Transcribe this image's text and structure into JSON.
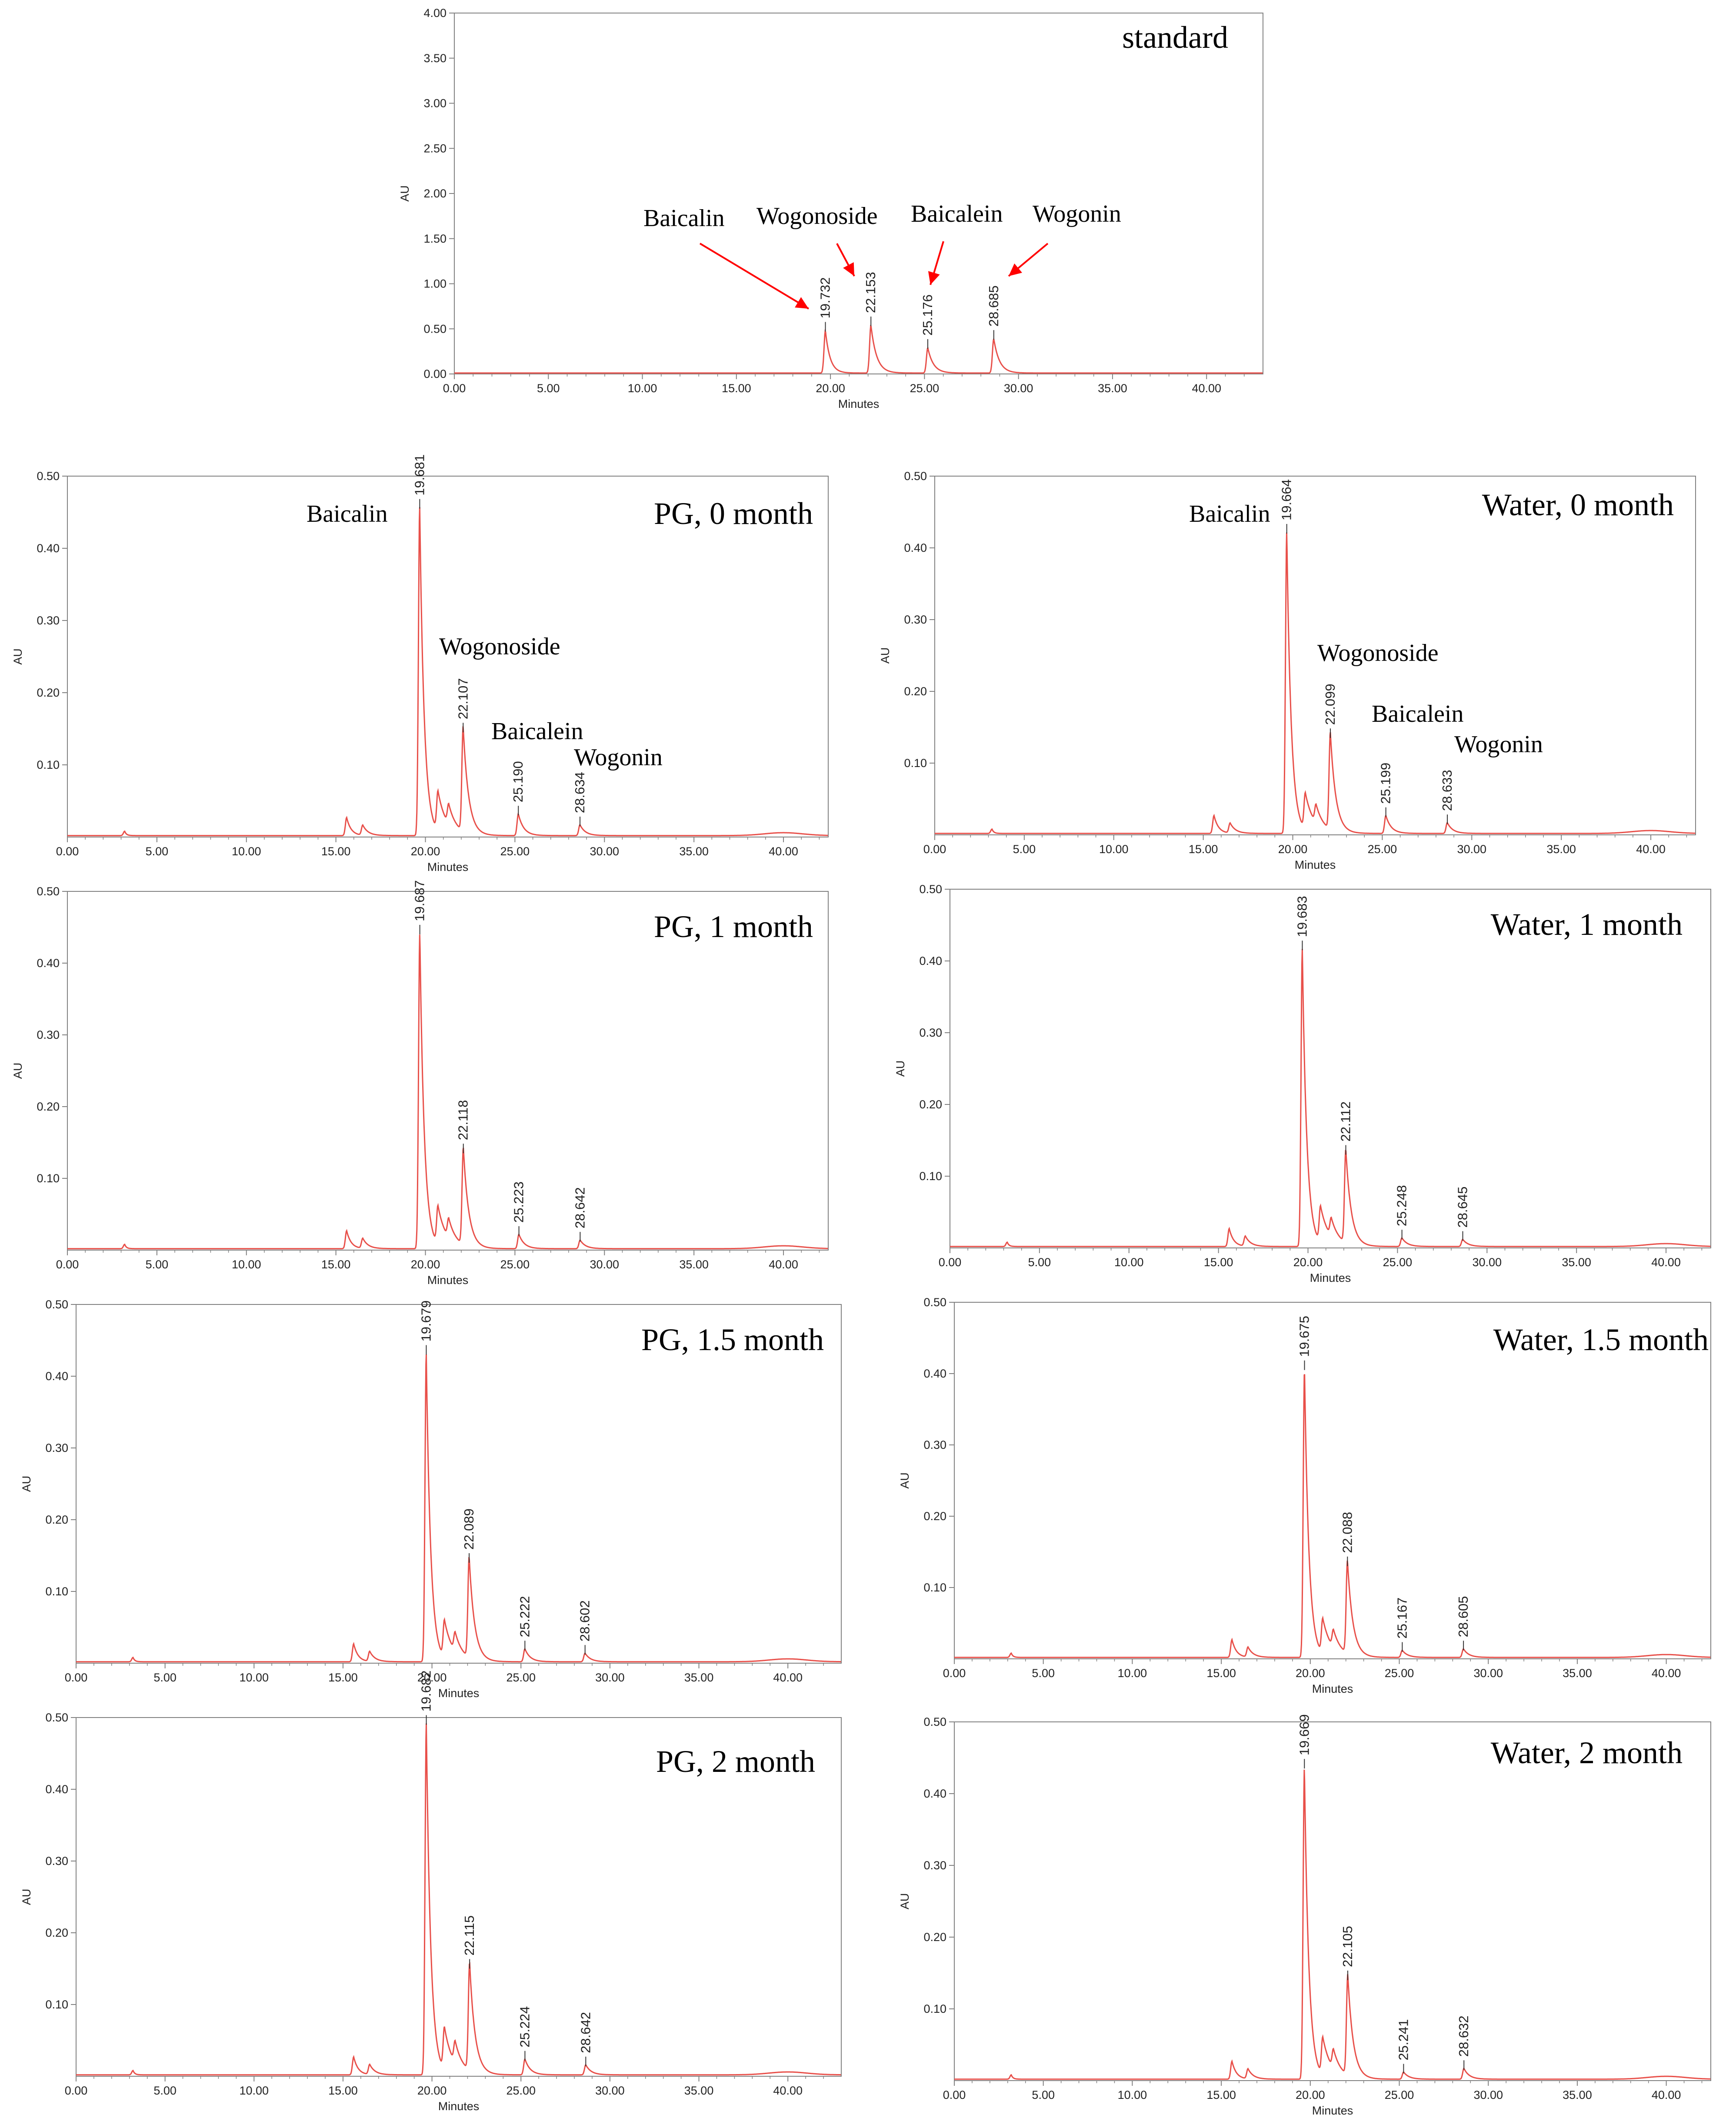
{
  "figure": {
    "x_axis_label": "Minutes",
    "y_axis_label": "AU",
    "x_tick_labels": [
      "0.00",
      "5.00",
      "10.00",
      "15.00",
      "20.00",
      "25.00",
      "30.00",
      "35.00",
      "40.00"
    ],
    "line_color": "#e8504a",
    "axis_color": "#808080",
    "arrow_color": "#ff0000"
  },
  "chart_data": [
    {
      "id": "standard",
      "type": "line",
      "title": "standard",
      "xlabel": "Minutes",
      "ylabel": "AU",
      "xlim": [
        0,
        43
      ],
      "ylim": [
        0,
        4.0
      ],
      "y_tick_values": [
        0,
        0.5,
        1.0,
        1.5,
        2.0,
        2.5,
        3.0,
        3.5,
        4.0
      ],
      "y_tick_labels": [
        "0.00",
        "0.50",
        "1.00",
        "1.50",
        "2.00",
        "2.50",
        "3.00",
        "3.50",
        "4.00"
      ],
      "peaks": [
        {
          "label": "19.732",
          "rt": 19.732,
          "height": 0.47
        },
        {
          "label": "22.153",
          "rt": 22.153,
          "height": 0.53
        },
        {
          "label": "25.176",
          "rt": 25.176,
          "height": 0.28
        },
        {
          "label": "28.685",
          "rt": 28.685,
          "height": 0.38
        }
      ],
      "compounds": [
        "Baicalin",
        "Wogonoside",
        "Baicalein",
        "Wogonin"
      ]
    },
    {
      "id": "pg0",
      "type": "line",
      "title": "PG, 0 month",
      "xlabel": "Minutes",
      "ylabel": "AU",
      "xlim": [
        0,
        42.5
      ],
      "ylim": [
        0,
        0.5
      ],
      "y_tick_values": [
        0.1,
        0.2,
        0.3,
        0.4,
        0.5
      ],
      "y_tick_labels": [
        "0.10",
        "0.20",
        "0.30",
        "0.40",
        "0.50"
      ],
      "peaks": [
        {
          "label": "19.681",
          "rt": 19.681,
          "height": 0.455
        },
        {
          "label": "22.107",
          "rt": 22.107,
          "height": 0.145
        },
        {
          "label": "25.190",
          "rt": 25.19,
          "height": 0.03
        },
        {
          "label": "28.634",
          "rt": 28.634,
          "height": 0.015
        }
      ],
      "compounds": [
        "Baicalin",
        "Wogonoside",
        "Baicalein",
        "Wogonin"
      ]
    },
    {
      "id": "water0",
      "type": "line",
      "title": "Water, 0 month",
      "xlabel": "Minutes",
      "ylabel": "AU",
      "xlim": [
        0,
        42.5
      ],
      "ylim": [
        0,
        0.5
      ],
      "y_tick_values": [
        0.1,
        0.2,
        0.3,
        0.4,
        0.5
      ],
      "y_tick_labels": [
        "0.10",
        "0.20",
        "0.30",
        "0.40",
        "0.50"
      ],
      "peaks": [
        {
          "label": "19.664",
          "rt": 19.664,
          "height": 0.42
        },
        {
          "label": "22.099",
          "rt": 22.099,
          "height": 0.135
        },
        {
          "label": "25.199",
          "rt": 25.199,
          "height": 0.025
        },
        {
          "label": "28.633",
          "rt": 28.633,
          "height": 0.015
        }
      ],
      "compounds": [
        "Baicalin",
        "Wogonoside",
        "Baicalein",
        "Wogonin"
      ]
    },
    {
      "id": "pg1",
      "type": "line",
      "title": "PG, 1 month",
      "xlabel": "Minutes",
      "ylabel": "AU",
      "xlim": [
        0,
        42.5
      ],
      "ylim": [
        0,
        0.5
      ],
      "y_tick_values": [
        0.1,
        0.2,
        0.3,
        0.4,
        0.5
      ],
      "y_tick_labels": [
        "0.10",
        "0.20",
        "0.30",
        "0.40",
        "0.50"
      ],
      "peaks": [
        {
          "label": "19.687",
          "rt": 19.687,
          "height": 0.44
        },
        {
          "label": "22.118",
          "rt": 22.118,
          "height": 0.135
        },
        {
          "label": "25.223",
          "rt": 25.223,
          "height": 0.02
        },
        {
          "label": "28.642",
          "rt": 28.642,
          "height": 0.012
        }
      ]
    },
    {
      "id": "water1",
      "type": "line",
      "title": "Water, 1 month",
      "xlabel": "Minutes",
      "ylabel": "AU",
      "xlim": [
        0,
        42.5
      ],
      "ylim": [
        0,
        0.5
      ],
      "y_tick_values": [
        0.1,
        0.2,
        0.3,
        0.4,
        0.5
      ],
      "y_tick_labels": [
        "0.10",
        "0.20",
        "0.30",
        "0.40",
        "0.50"
      ],
      "peaks": [
        {
          "label": "19.683",
          "rt": 19.683,
          "height": 0.415
        },
        {
          "label": "22.112",
          "rt": 22.112,
          "height": 0.13
        },
        {
          "label": "25.248",
          "rt": 25.248,
          "height": 0.012
        },
        {
          "label": "28.645",
          "rt": 28.645,
          "height": 0.01
        }
      ]
    },
    {
      "id": "pg15",
      "type": "line",
      "title": "PG, 1.5 month",
      "xlabel": "Minutes",
      "ylabel": "AU",
      "xlim": [
        0,
        43
      ],
      "ylim": [
        0,
        0.5
      ],
      "y_tick_values": [
        0.1,
        0.2,
        0.3,
        0.4,
        0.5
      ],
      "y_tick_labels": [
        "0.10",
        "0.20",
        "0.30",
        "0.40",
        "0.50"
      ],
      "peaks": [
        {
          "label": "19.679",
          "rt": 19.679,
          "height": 0.43
        },
        {
          "label": "22.089",
          "rt": 22.089,
          "height": 0.14
        },
        {
          "label": "25.222",
          "rt": 25.222,
          "height": 0.018
        },
        {
          "label": "28.602",
          "rt": 28.602,
          "height": 0.012
        }
      ]
    },
    {
      "id": "water15",
      "type": "line",
      "title": "Water, 1.5 month",
      "xlabel": "Minutes",
      "ylabel": "AU",
      "xlim": [
        0,
        42.5
      ],
      "ylim": [
        0,
        0.5
      ],
      "y_tick_values": [
        0.1,
        0.2,
        0.3,
        0.4,
        0.5
      ],
      "y_tick_labels": [
        "0.10",
        "0.20",
        "0.30",
        "0.40",
        "0.50"
      ],
      "peaks": [
        {
          "label": "19.675",
          "rt": 19.675,
          "height": 0.405
        },
        {
          "label": "22.088",
          "rt": 22.088,
          "height": 0.13
        },
        {
          "label": "25.167",
          "rt": 25.167,
          "height": 0.01
        },
        {
          "label": "28.605",
          "rt": 28.605,
          "height": 0.012
        }
      ]
    },
    {
      "id": "pg2",
      "type": "line",
      "title": "PG, 2 month",
      "xlabel": "Minutes",
      "ylabel": "AU",
      "xlim": [
        0,
        43
      ],
      "ylim": [
        0,
        0.5
      ],
      "y_tick_values": [
        0.1,
        0.2,
        0.3,
        0.4,
        0.5
      ],
      "y_tick_labels": [
        "0.10",
        "0.20",
        "0.30",
        "0.40",
        "0.50"
      ],
      "peaks": [
        {
          "label": "19.682",
          "rt": 19.682,
          "height": 0.49
        },
        {
          "label": "22.115",
          "rt": 22.115,
          "height": 0.15
        },
        {
          "label": "25.224",
          "rt": 25.224,
          "height": 0.022
        },
        {
          "label": "28.642",
          "rt": 28.642,
          "height": 0.014
        }
      ]
    },
    {
      "id": "water2",
      "type": "line",
      "title": "Water, 2 month",
      "xlabel": "Minutes",
      "ylabel": "AU",
      "xlim": [
        0,
        42.5
      ],
      "ylim": [
        0,
        0.5
      ],
      "y_tick_values": [
        0.1,
        0.2,
        0.3,
        0.4,
        0.5
      ],
      "y_tick_labels": [
        "0.10",
        "0.20",
        "0.30",
        "0.40",
        "0.50"
      ],
      "peaks": [
        {
          "label": "19.669",
          "rt": 19.669,
          "height": 0.435
        },
        {
          "label": "22.105",
          "rt": 22.105,
          "height": 0.14
        },
        {
          "label": "25.241",
          "rt": 25.241,
          "height": 0.01
        },
        {
          "label": "28.632",
          "rt": 28.632,
          "height": 0.015
        }
      ]
    }
  ]
}
